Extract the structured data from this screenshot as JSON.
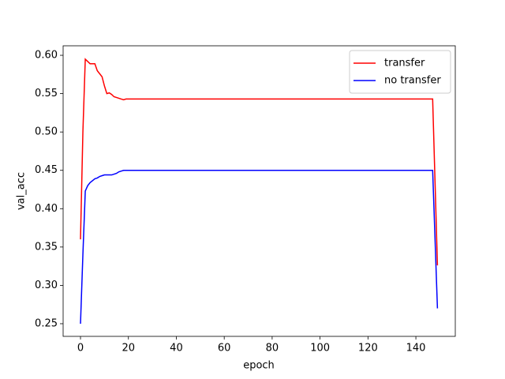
{
  "chart_data": {
    "type": "line",
    "x_label": "epoch",
    "y_label": "val_acc",
    "x": [
      0,
      1,
      2,
      3,
      4,
      6,
      7,
      8,
      9,
      10,
      11,
      12,
      13,
      14,
      15,
      16,
      17,
      18,
      19,
      147,
      149
    ],
    "series": [
      {
        "name": "transfer",
        "color": "#ff0000",
        "values": [
          0.36,
          0.5,
          0.595,
          0.592,
          0.589,
          0.589,
          0.58,
          0.576,
          0.572,
          0.56,
          0.55,
          0.551,
          0.549,
          0.546,
          0.545,
          0.544,
          0.543,
          0.542,
          0.543,
          0.543,
          0.326
        ]
      },
      {
        "name": "no transfer",
        "color": "#0000ff",
        "values": [
          0.25,
          0.34,
          0.423,
          0.43,
          0.434,
          0.439,
          0.44,
          0.442,
          0.443,
          0.444,
          0.444,
          0.444,
          0.444,
          0.445,
          0.446,
          0.448,
          0.449,
          0.45,
          0.45,
          0.45,
          0.27
        ]
      }
    ],
    "xlim": [
      -7.25,
      156.45
    ],
    "xticks": [
      0,
      20,
      40,
      60,
      80,
      100,
      120,
      140
    ],
    "ylim": [
      0.2335,
      0.6124
    ],
    "yticks": [
      0.25,
      {
        "value": 0.3,
        "label": "0.30"
      },
      0.35,
      {
        "value": 0.4,
        "label": "0.40"
      },
      0.45,
      {
        "value": 0.5,
        "label": "0.50"
      },
      0.55,
      {
        "value": 0.6,
        "label": "0.60"
      }
    ],
    "legend": "upper right",
    "grid": false
  }
}
